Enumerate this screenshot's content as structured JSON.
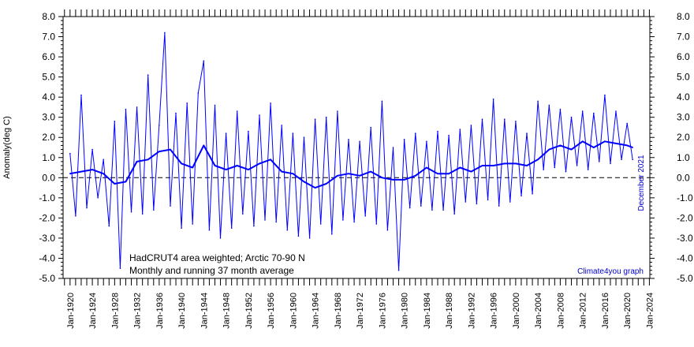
{
  "chart_data": {
    "type": "line",
    "ylabel": "Anomaly(deg C)",
    "ylim": [
      -5.0,
      8.0
    ],
    "y_ticks": [
      "8.0",
      "7.0",
      "6.0",
      "5.0",
      "4.0",
      "3.0",
      "2.0",
      "1.0",
      "0.0",
      "-1.0",
      "-2.0",
      "-3.0",
      "-4.0",
      "-5.0"
    ],
    "xlim": [
      "1918-10",
      "2024-02"
    ],
    "x_tick_labels": [
      "Jan-1920",
      "Jan-1924",
      "Jan-1928",
      "Jan-1932",
      "Jan-1936",
      "Jan-1940",
      "Jan-1944",
      "Jan-1948",
      "Jan-1952",
      "Jan-1956",
      "Jan-1960",
      "Jan-1964",
      "Jan-1968",
      "Jan-1972",
      "Jan-1976",
      "Jan-1980",
      "Jan-1984",
      "Jan-1988",
      "Jan-1992",
      "Jan-1996",
      "Jan-2000",
      "Jan-2004",
      "Jan-2008",
      "Jan-2012",
      "Jan-2016",
      "Jan-2020",
      "Jan-2024"
    ],
    "annotations": [
      "HadCRUT4 area weighted; Arctic 70-90 N",
      "Monthly and running 37 month average"
    ],
    "credit": "Climate4you graph",
    "date_label": "December 2021",
    "zero_line": "dashed",
    "grid": false,
    "series": [
      {
        "kind": "monthly",
        "color": "#0000ff",
        "x": [
          "1920",
          "1921",
          "1922",
          "1923",
          "1924",
          "1925",
          "1926",
          "1927",
          "1928",
          "1929",
          "1930",
          "1931",
          "1932",
          "1933",
          "1934",
          "1935",
          "1936",
          "1937",
          "1938",
          "1939",
          "1940",
          "1941",
          "1942",
          "1943",
          "1944",
          "1945",
          "1946",
          "1947",
          "1948",
          "1949",
          "1950",
          "1951",
          "1952",
          "1953",
          "1954",
          "1955",
          "1956",
          "1957",
          "1958",
          "1959",
          "1960",
          "1961",
          "1962",
          "1963",
          "1964",
          "1965",
          "1966",
          "1967",
          "1968",
          "1969",
          "1970",
          "1971",
          "1972",
          "1973",
          "1974",
          "1975",
          "1976",
          "1977",
          "1978",
          "1979",
          "1980",
          "1981",
          "1982",
          "1983",
          "1984",
          "1985",
          "1986",
          "1987",
          "1988",
          "1989",
          "1990",
          "1991",
          "1992",
          "1993",
          "1994",
          "1995",
          "1996",
          "1997",
          "1998",
          "1999",
          "2000",
          "2001",
          "2002",
          "2003",
          "2004",
          "2005",
          "2006",
          "2007",
          "2008",
          "2009",
          "2010",
          "2011",
          "2012",
          "2013",
          "2014",
          "2015",
          "2016",
          "2017",
          "2018",
          "2019",
          "2020",
          "2021"
        ],
        "y": [
          1.2,
          -1.9,
          4.1,
          -1.5,
          1.4,
          -1.0,
          0.9,
          -2.4,
          2.8,
          -4.5,
          3.4,
          -1.7,
          3.5,
          -1.8,
          5.1,
          -1.6,
          2.6,
          7.2,
          -1.4,
          3.2,
          -2.5,
          3.7,
          -2.3,
          4.2,
          5.8,
          -2.6,
          3.6,
          -3.0,
          2.2,
          -2.5,
          3.3,
          -1.8,
          2.3,
          -2.4,
          3.1,
          -2.1,
          3.7,
          -2.2,
          2.6,
          -2.6,
          2.2,
          -2.9,
          2.0,
          -3.0,
          2.9,
          -2.3,
          3.0,
          -2.8,
          3.3,
          -2.1,
          1.9,
          -2.2,
          1.8,
          -1.9,
          2.5,
          -2.3,
          3.8,
          -2.6,
          1.5,
          -4.6,
          1.9,
          -1.5,
          2.2,
          -1.4,
          1.8,
          -1.6,
          2.3,
          -1.6,
          2.1,
          -1.8,
          2.4,
          -1.2,
          2.6,
          -1.3,
          2.9,
          -1.1,
          3.9,
          -1.4,
          2.9,
          -1.2,
          2.8,
          -0.9,
          2.2,
          -0.8,
          3.8,
          0.4,
          3.6,
          0.5,
          3.4,
          0.3,
          3.0,
          0.6,
          3.3,
          0.4,
          3.2,
          0.8,
          4.1,
          0.7,
          3.3,
          0.9,
          2.7,
          0.9
        ]
      },
      {
        "kind": "running 37 month average",
        "color": "#0000ff",
        "x": [
          "1920",
          "1922",
          "1924",
          "1926",
          "1928",
          "1930",
          "1932",
          "1934",
          "1936",
          "1938",
          "1940",
          "1942",
          "1944",
          "1946",
          "1948",
          "1950",
          "1952",
          "1954",
          "1956",
          "1958",
          "1960",
          "1962",
          "1964",
          "1966",
          "1968",
          "1970",
          "1972",
          "1974",
          "1976",
          "1978",
          "1980",
          "1982",
          "1984",
          "1986",
          "1988",
          "1990",
          "1992",
          "1994",
          "1996",
          "1998",
          "2000",
          "2002",
          "2004",
          "2006",
          "2008",
          "2010",
          "2012",
          "2014",
          "2016",
          "2018",
          "2020",
          "2021"
        ],
        "y": [
          0.2,
          0.3,
          0.4,
          0.2,
          -0.3,
          -0.2,
          0.8,
          0.9,
          1.3,
          1.4,
          0.7,
          0.5,
          1.6,
          0.6,
          0.4,
          0.6,
          0.4,
          0.7,
          0.9,
          0.3,
          0.2,
          -0.2,
          -0.5,
          -0.3,
          0.1,
          0.2,
          0.1,
          0.3,
          0.0,
          -0.1,
          -0.1,
          0.1,
          0.5,
          0.2,
          0.2,
          0.5,
          0.3,
          0.6,
          0.6,
          0.7,
          0.7,
          0.6,
          0.9,
          1.4,
          1.6,
          1.4,
          1.8,
          1.5,
          1.8,
          1.7,
          1.6,
          1.5
        ]
      }
    ]
  }
}
